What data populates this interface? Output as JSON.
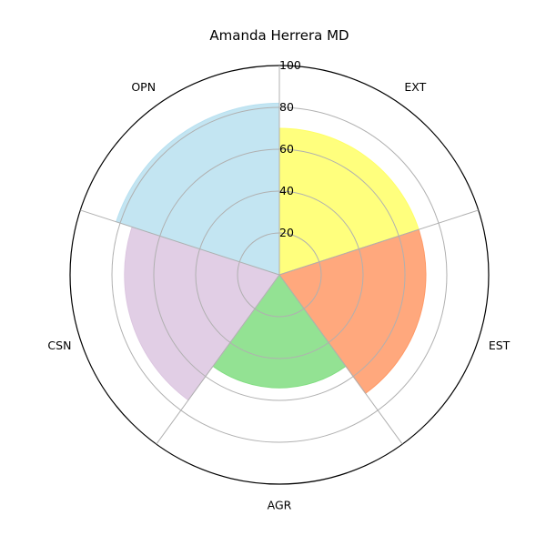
{
  "chart_data": {
    "type": "polar-bar",
    "title": "Amanda Herrera MD",
    "categories": [
      "EXT",
      "EST",
      "AGR",
      "CSN",
      "OPN"
    ],
    "values": [
      70,
      70,
      54,
      74,
      82
    ],
    "colors": [
      "#ffff66",
      "#ff9966",
      "#80dd80",
      "#dcc6e0",
      "#b8e0f0"
    ],
    "rlim": [
      0,
      100
    ],
    "r_ticks": [
      20,
      40,
      60,
      80,
      100
    ],
    "r_tick_labels": [
      "20",
      "40",
      "60",
      "80",
      "100"
    ],
    "grid": true
  }
}
